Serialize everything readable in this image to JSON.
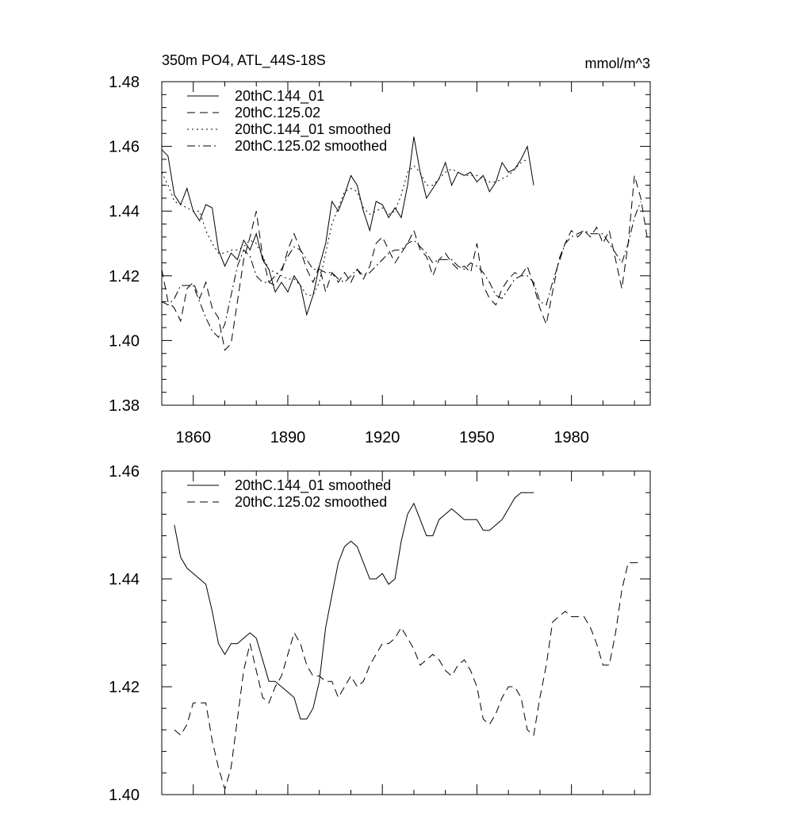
{
  "colors": {
    "background": "#ffffff",
    "ink": "#000000"
  },
  "chart_data": [
    {
      "type": "line",
      "title": "350m PO4, ATL_44S-18S",
      "units": "mmol/m^3",
      "xlim": [
        1850,
        2005
      ],
      "ylim": [
        1.38,
        1.48
      ],
      "xticks": [
        1860,
        1890,
        1920,
        1950,
        1980
      ],
      "xtick_labels": [
        "1860",
        "1890",
        "1920",
        "1950",
        "1980"
      ],
      "yticks": [
        1.38,
        1.4,
        1.42,
        1.44,
        1.46,
        1.48
      ],
      "ytick_labels": [
        "1.38",
        "1.40",
        "1.42",
        "1.44",
        "1.46",
        "1.48"
      ],
      "legend_position": "top-left",
      "series": [
        {
          "name": "20thC.144_01",
          "style": "solid",
          "x": [
            1850,
            1852,
            1854,
            1856,
            1858,
            1860,
            1862,
            1864,
            1866,
            1868,
            1870,
            1872,
            1874,
            1876,
            1878,
            1880,
            1882,
            1884,
            1886,
            1888,
            1890,
            1892,
            1894,
            1896,
            1898,
            1900,
            1902,
            1904,
            1906,
            1908,
            1910,
            1912,
            1914,
            1916,
            1918,
            1920,
            1922,
            1924,
            1926,
            1928,
            1930,
            1932,
            1934,
            1936,
            1938,
            1940,
            1942,
            1944,
            1946,
            1948,
            1950,
            1952,
            1954,
            1956,
            1958,
            1960,
            1962,
            1964,
            1966,
            1968
          ],
          "values": [
            1.459,
            1.457,
            1.445,
            1.442,
            1.447,
            1.44,
            1.437,
            1.442,
            1.441,
            1.428,
            1.423,
            1.427,
            1.425,
            1.431,
            1.428,
            1.433,
            1.425,
            1.422,
            1.415,
            1.418,
            1.415,
            1.42,
            1.417,
            1.408,
            1.414,
            1.423,
            1.43,
            1.443,
            1.44,
            1.445,
            1.451,
            1.448,
            1.44,
            1.434,
            1.443,
            1.442,
            1.438,
            1.441,
            1.438,
            1.448,
            1.463,
            1.452,
            1.444,
            1.447,
            1.45,
            1.455,
            1.448,
            1.452,
            1.451,
            1.452,
            1.449,
            1.451,
            1.446,
            1.449,
            1.455,
            1.452,
            1.453,
            1.456,
            1.46,
            1.448
          ]
        },
        {
          "name": "20thC.125.02",
          "style": "dashed",
          "x": [
            1850,
            1852,
            1854,
            1856,
            1858,
            1860,
            1862,
            1864,
            1866,
            1868,
            1870,
            1872,
            1874,
            1876,
            1878,
            1880,
            1882,
            1884,
            1886,
            1888,
            1890,
            1892,
            1894,
            1896,
            1898,
            1900,
            1902,
            1904,
            1906,
            1908,
            1910,
            1912,
            1914,
            1916,
            1918,
            1920,
            1922,
            1924,
            1926,
            1928,
            1930,
            1932,
            1934,
            1936,
            1938,
            1940,
            1942,
            1944,
            1946,
            1948,
            1950,
            1952,
            1954,
            1956,
            1958,
            1960,
            1962,
            1964,
            1966,
            1968,
            1970,
            1972,
            1974,
            1976,
            1978,
            1980,
            1982,
            1984,
            1986,
            1988,
            1990,
            1992,
            1994,
            1996,
            1998,
            2000,
            2002,
            2004
          ],
          "values": [
            1.422,
            1.412,
            1.41,
            1.406,
            1.416,
            1.418,
            1.413,
            1.418,
            1.41,
            1.407,
            1.397,
            1.399,
            1.412,
            1.425,
            1.432,
            1.44,
            1.426,
            1.418,
            1.417,
            1.421,
            1.428,
            1.433,
            1.428,
            1.422,
            1.418,
            1.423,
            1.415,
            1.421,
            1.418,
            1.421,
            1.418,
            1.422,
            1.419,
            1.423,
            1.43,
            1.432,
            1.428,
            1.424,
            1.427,
            1.43,
            1.434,
            1.428,
            1.426,
            1.42,
            1.425,
            1.427,
            1.424,
            1.422,
            1.423,
            1.421,
            1.43,
            1.417,
            1.413,
            1.411,
            1.416,
            1.419,
            1.421,
            1.42,
            1.423,
            1.417,
            1.41,
            1.405,
            1.415,
            1.425,
            1.43,
            1.434,
            1.432,
            1.434,
            1.432,
            1.435,
            1.43,
            1.434,
            1.425,
            1.416,
            1.43,
            1.451,
            1.444,
            1.432
          ]
        },
        {
          "name": "20thC.144_01 smoothed",
          "style": "dotted",
          "x": [
            1850,
            1852,
            1854,
            1856,
            1858,
            1860,
            1862,
            1864,
            1866,
            1868,
            1870,
            1872,
            1874,
            1876,
            1878,
            1880,
            1882,
            1884,
            1886,
            1888,
            1890,
            1892,
            1894,
            1896,
            1898,
            1900,
            1902,
            1904,
            1906,
            1908,
            1910,
            1912,
            1914,
            1916,
            1918,
            1920,
            1922,
            1924,
            1926,
            1928,
            1930,
            1932,
            1934,
            1936,
            1938,
            1940,
            1942,
            1944,
            1946,
            1948,
            1950,
            1952,
            1954,
            1956,
            1958,
            1960,
            1962,
            1964,
            1966
          ],
          "values": [
            1.452,
            1.448,
            1.443,
            1.442,
            1.441,
            1.44,
            1.44,
            1.434,
            1.43,
            1.427,
            1.427,
            1.428,
            1.428,
            1.429,
            1.431,
            1.43,
            1.426,
            1.422,
            1.421,
            1.42,
            1.419,
            1.419,
            1.417,
            1.414,
            1.414,
            1.418,
            1.427,
            1.436,
            1.441,
            1.446,
            1.447,
            1.446,
            1.441,
            1.439,
            1.44,
            1.441,
            1.439,
            1.44,
            1.445,
            1.452,
            1.454,
            1.452,
            1.448,
            1.448,
            1.45,
            1.452,
            1.453,
            1.452,
            1.451,
            1.451,
            1.451,
            1.45,
            1.449,
            1.449,
            1.45,
            1.451,
            1.453,
            1.455,
            1.456
          ]
        },
        {
          "name": "20thC.125.02 smoothed",
          "style": "dashdot",
          "x": [
            1850,
            1852,
            1854,
            1856,
            1858,
            1860,
            1862,
            1864,
            1866,
            1868,
            1870,
            1872,
            1874,
            1876,
            1878,
            1880,
            1882,
            1884,
            1886,
            1888,
            1890,
            1892,
            1894,
            1896,
            1898,
            1900,
            1902,
            1904,
            1906,
            1908,
            1910,
            1912,
            1914,
            1916,
            1918,
            1920,
            1922,
            1924,
            1926,
            1928,
            1930,
            1932,
            1934,
            1936,
            1938,
            1940,
            1942,
            1944,
            1946,
            1948,
            1950,
            1952,
            1954,
            1956,
            1958,
            1960,
            1962,
            1964,
            1966,
            1968,
            1970,
            1972,
            1974,
            1976,
            1978,
            1980,
            1982,
            1984,
            1986,
            1988,
            1990,
            1992,
            1994,
            1996,
            1998,
            2000,
            2002
          ],
          "values": [
            1.412,
            1.411,
            1.413,
            1.417,
            1.417,
            1.417,
            1.412,
            1.407,
            1.403,
            1.401,
            1.405,
            1.414,
            1.423,
            1.428,
            1.426,
            1.42,
            1.418,
            1.418,
            1.42,
            1.422,
            1.426,
            1.429,
            1.428,
            1.425,
            1.422,
            1.422,
            1.421,
            1.421,
            1.419,
            1.418,
            1.42,
            1.422,
            1.42,
            1.421,
            1.423,
            1.425,
            1.427,
            1.428,
            1.428,
            1.43,
            1.431,
            1.429,
            1.427,
            1.424,
            1.425,
            1.425,
            1.425,
            1.423,
            1.422,
            1.424,
            1.423,
            1.421,
            1.418,
            1.414,
            1.413,
            1.416,
            1.419,
            1.42,
            1.42,
            1.418,
            1.412,
            1.411,
            1.418,
            1.424,
            1.43,
            1.432,
            1.433,
            1.434,
            1.433,
            1.433,
            1.433,
            1.43,
            1.427,
            1.424,
            1.43,
            1.438,
            1.443
          ]
        }
      ]
    },
    {
      "type": "line",
      "title": "",
      "units": "",
      "xlim": [
        1850,
        2005
      ],
      "ylim": [
        1.4,
        1.46
      ],
      "xticks": [
        1860,
        1890,
        1920,
        1950,
        1980
      ],
      "xtick_labels": [],
      "yticks": [
        1.4,
        1.42,
        1.44,
        1.46
      ],
      "ytick_labels": [
        "1.40",
        "1.42",
        "1.44",
        "1.46"
      ],
      "legend_position": "top-left",
      "series": [
        {
          "name": "20thC.144_01 smoothed",
          "style": "solid",
          "x": [
            1854,
            1856,
            1858,
            1860,
            1862,
            1864,
            1866,
            1868,
            1870,
            1872,
            1874,
            1876,
            1878,
            1880,
            1882,
            1884,
            1886,
            1888,
            1890,
            1892,
            1894,
            1896,
            1898,
            1900,
            1902,
            1904,
            1906,
            1908,
            1910,
            1912,
            1914,
            1916,
            1918,
            1920,
            1922,
            1924,
            1926,
            1928,
            1930,
            1932,
            1934,
            1936,
            1938,
            1940,
            1942,
            1944,
            1946,
            1948,
            1950,
            1952,
            1954,
            1956,
            1958,
            1960,
            1962,
            1964,
            1966,
            1968
          ],
          "values": [
            1.45,
            1.444,
            1.442,
            1.441,
            1.44,
            1.439,
            1.434,
            1.428,
            1.426,
            1.428,
            1.428,
            1.429,
            1.43,
            1.429,
            1.425,
            1.421,
            1.421,
            1.42,
            1.419,
            1.418,
            1.414,
            1.414,
            1.416,
            1.421,
            1.431,
            1.437,
            1.443,
            1.446,
            1.447,
            1.446,
            1.443,
            1.44,
            1.44,
            1.441,
            1.439,
            1.44,
            1.447,
            1.452,
            1.454,
            1.451,
            1.448,
            1.448,
            1.451,
            1.452,
            1.453,
            1.452,
            1.451,
            1.451,
            1.451,
            1.449,
            1.449,
            1.45,
            1.451,
            1.453,
            1.455,
            1.456,
            1.456,
            1.456
          ]
        },
        {
          "name": "20thC.125.02 smoothed",
          "style": "dashed",
          "x": [
            1854,
            1856,
            1858,
            1860,
            1862,
            1864,
            1866,
            1868,
            1870,
            1872,
            1874,
            1876,
            1878,
            1880,
            1882,
            1884,
            1886,
            1888,
            1890,
            1892,
            1894,
            1896,
            1898,
            1900,
            1902,
            1904,
            1906,
            1908,
            1910,
            1912,
            1914,
            1916,
            1918,
            1920,
            1922,
            1924,
            1926,
            1928,
            1930,
            1932,
            1934,
            1936,
            1938,
            1940,
            1942,
            1944,
            1946,
            1948,
            1950,
            1952,
            1954,
            1956,
            1958,
            1960,
            1962,
            1964,
            1966,
            1968,
            1970,
            1972,
            1974,
            1976,
            1978,
            1980,
            1982,
            1984,
            1986,
            1988,
            1990,
            1992,
            1994,
            1996,
            1998,
            2000,
            2002
          ],
          "values": [
            1.412,
            1.411,
            1.413,
            1.417,
            1.417,
            1.417,
            1.41,
            1.405,
            1.401,
            1.405,
            1.414,
            1.423,
            1.428,
            1.423,
            1.418,
            1.417,
            1.42,
            1.422,
            1.426,
            1.43,
            1.428,
            1.424,
            1.422,
            1.422,
            1.421,
            1.421,
            1.418,
            1.42,
            1.422,
            1.42,
            1.421,
            1.424,
            1.426,
            1.428,
            1.428,
            1.429,
            1.431,
            1.429,
            1.427,
            1.424,
            1.425,
            1.426,
            1.425,
            1.423,
            1.422,
            1.424,
            1.425,
            1.423,
            1.42,
            1.414,
            1.413,
            1.415,
            1.418,
            1.42,
            1.42,
            1.418,
            1.412,
            1.411,
            1.418,
            1.424,
            1.432,
            1.433,
            1.434,
            1.433,
            1.433,
            1.433,
            1.431,
            1.428,
            1.424,
            1.424,
            1.43,
            1.438,
            1.443,
            1.443,
            1.443
          ]
        }
      ]
    }
  ]
}
